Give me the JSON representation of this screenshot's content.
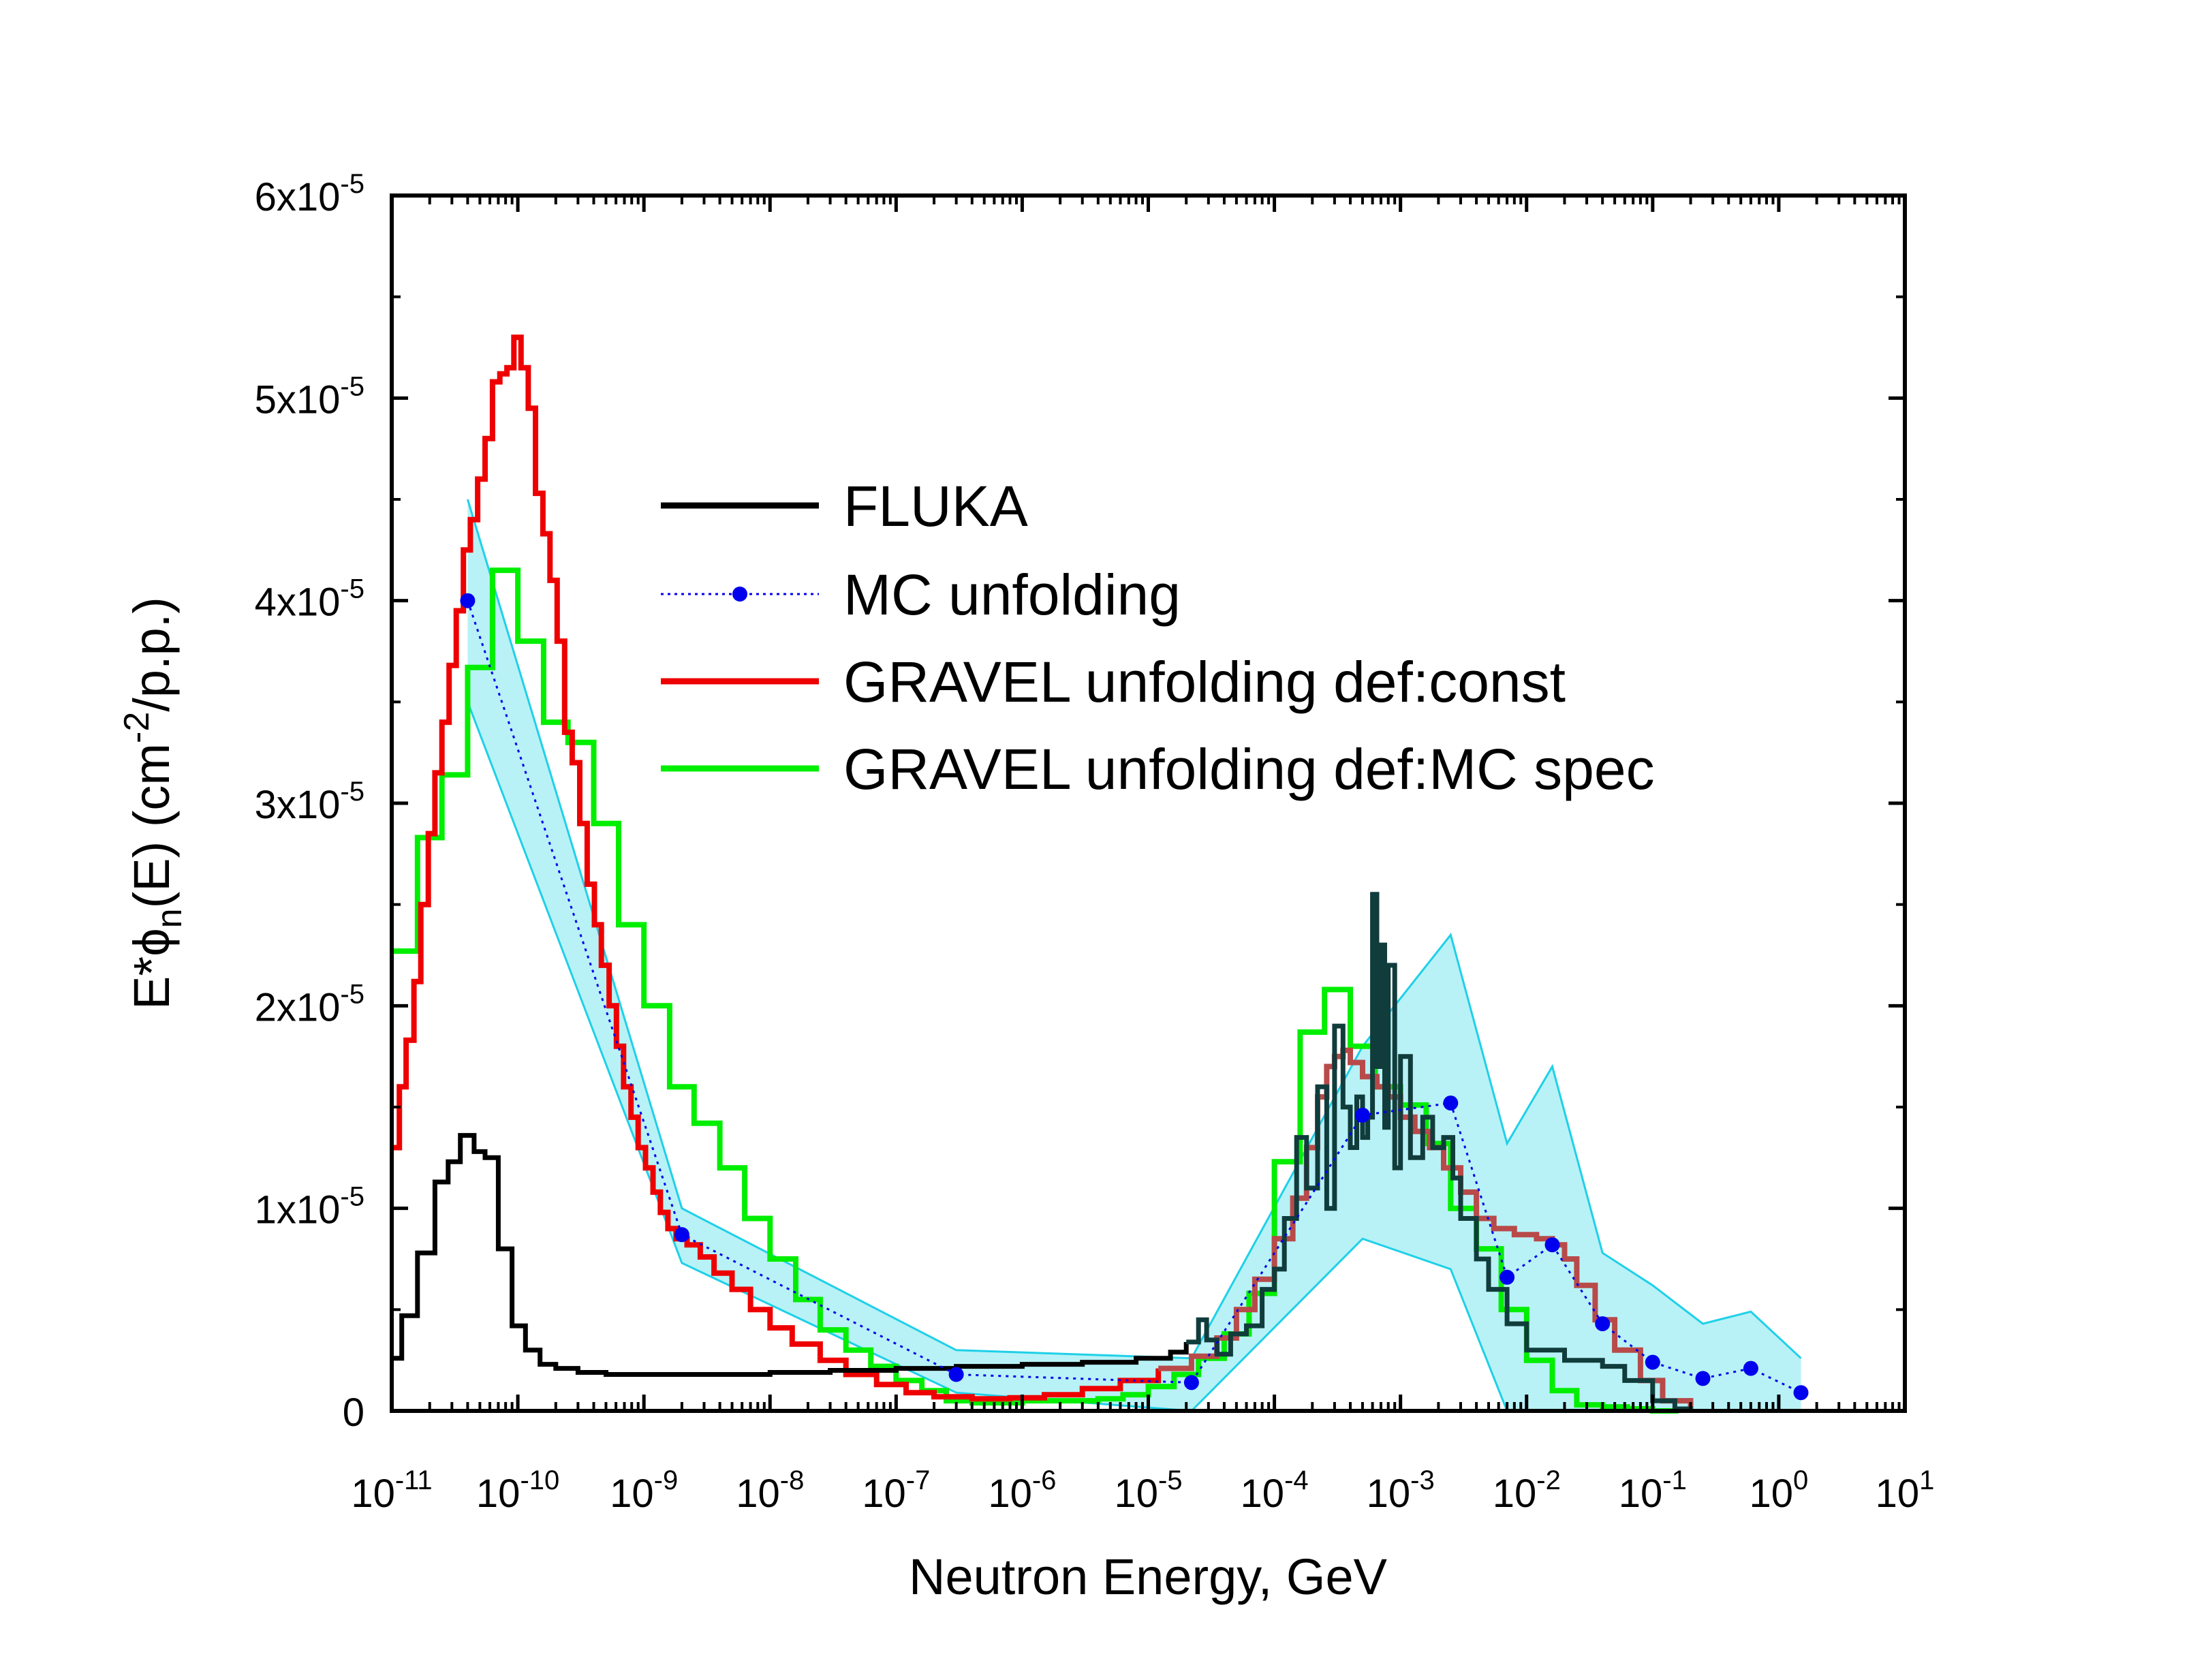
{
  "chart_data": {
    "type": "line",
    "xlabel": "Neutron Energy, GeV",
    "ylabel": "E*φn(E) (cm-2/p.p.)",
    "ylabel_parts": {
      "main": "E*",
      "phi": "ϕ",
      "sub": "n",
      "mid": "(E) (cm",
      "sup": "-2",
      "end": "/p.p.)"
    },
    "x_scale": "log",
    "xlim": [
      1e-11,
      10
    ],
    "ylim": [
      0,
      6e-05
    ],
    "x_ticks": [
      {
        "value": 1e-11,
        "base": "10",
        "exp": "-11"
      },
      {
        "value": 1e-10,
        "base": "10",
        "exp": "-10"
      },
      {
        "value": 1e-09,
        "base": "10",
        "exp": "-9"
      },
      {
        "value": 1e-08,
        "base": "10",
        "exp": "-8"
      },
      {
        "value": 1e-07,
        "base": "10",
        "exp": "-7"
      },
      {
        "value": 1e-06,
        "base": "10",
        "exp": "-6"
      },
      {
        "value": 1e-05,
        "base": "10",
        "exp": "-5"
      },
      {
        "value": 0.0001,
        "base": "10",
        "exp": "-4"
      },
      {
        "value": 0.001,
        "base": "10",
        "exp": "-3"
      },
      {
        "value": 0.01,
        "base": "10",
        "exp": "-2"
      },
      {
        "value": 0.1,
        "base": "10",
        "exp": "-1"
      },
      {
        "value": 1,
        "base": "10",
        "exp": "0"
      },
      {
        "value": 10,
        "base": "10",
        "exp": "1"
      }
    ],
    "y_ticks": [
      {
        "value": 0,
        "base": "0",
        "exp": ""
      },
      {
        "value": 1e-05,
        "base": "1x10",
        "exp": "-5"
      },
      {
        "value": 2e-05,
        "base": "2x10",
        "exp": "-5"
      },
      {
        "value": 3e-05,
        "base": "3x10",
        "exp": "-5"
      },
      {
        "value": 4e-05,
        "base": "4x10",
        "exp": "-5"
      },
      {
        "value": 5e-05,
        "base": "5x10",
        "exp": "-5"
      },
      {
        "value": 6e-05,
        "base": "6x10",
        "exp": "-5"
      }
    ],
    "legend_position": "upper-center",
    "colors": {
      "fluka": "#000000",
      "fluka_high": "#103c3c",
      "mc": "#0000ee",
      "band_fill": "#b8f2f6",
      "band_line": "#1fd0e8",
      "gravel_const": "#ee0000",
      "gravel_const_high": "#b84a4a",
      "gravel_mc": "#00ee00"
    },
    "series": [
      {
        "name": "FLUKA",
        "style": "step",
        "x": [
          1e-11,
          1.2e-11,
          1.6e-11,
          2.2e-11,
          2.8e-11,
          3.5e-11,
          4.5e-11,
          5.5e-11,
          7e-11,
          9e-11,
          1.15e-10,
          1.5e-10,
          2e-10,
          3e-10,
          5e-10,
          1e-09,
          3e-09,
          1e-08,
          3e-08,
          1e-07,
          3e-07,
          1e-06,
          3e-06,
          8e-06,
          1.5e-05,
          2e-05,
          2.5e-05,
          2.9e-05,
          3.5e-05,
          4.5e-05,
          6e-05,
          8e-05,
          0.0001,
          0.00012,
          0.00015,
          0.00018,
          0.00022,
          0.00026,
          0.0003,
          0.00035,
          0.0004,
          0.00045,
          0.0005,
          0.00055,
          0.0006,
          0.00065,
          0.0007,
          0.00075,
          0.0008,
          0.0009,
          0.001,
          0.0012,
          0.0015,
          0.0018,
          0.0022,
          0.0026,
          0.003,
          0.004,
          0.005,
          0.007,
          0.01,
          0.02,
          0.04,
          0.06,
          0.1,
          0.15,
          0.2
        ],
        "y": [
          2.6e-06,
          4.7e-06,
          7.8e-06,
          1.13e-05,
          1.23e-05,
          1.36e-05,
          1.28e-05,
          1.25e-05,
          8e-06,
          4.2e-06,
          3e-06,
          2.3e-06,
          2.1e-06,
          1.9e-06,
          1.8e-06,
          1.8e-06,
          1.8e-06,
          1.9e-06,
          2e-06,
          2.1e-06,
          2.2e-06,
          2.3e-06,
          2.4e-06,
          2.6e-06,
          2.9e-06,
          3.4e-06,
          4.5e-06,
          3.5e-06,
          2.8e-06,
          3.8e-06,
          4.2e-06,
          6e-06,
          7e-06,
          9.5e-06,
          1.35e-05,
          1.1e-05,
          1.6e-05,
          1e-05,
          1.9e-05,
          1.5e-05,
          1.3e-05,
          1.55e-05,
          1.35e-05,
          1.45e-05,
          2.55e-05,
          1.7e-05,
          2.3e-05,
          1.4e-05,
          2.2e-05,
          1.2e-05,
          1.75e-05,
          1.25e-05,
          1.45e-05,
          1.3e-05,
          1.35e-05,
          1.15e-05,
          9.5e-06,
          7.5e-06,
          6e-06,
          4.3e-06,
          3e-06,
          2.5e-06,
          2.2e-06,
          1.5e-06,
          5e-07,
          1e-07,
          0
        ]
      },
      {
        "name": "MC unfolding",
        "style": "dotted-markers",
        "x": [
          4e-11,
          2e-09,
          3e-07,
          2.2e-05,
          0.0005,
          0.0025,
          0.007,
          0.016,
          0.04,
          0.1,
          0.25,
          0.6,
          1.5
        ],
        "y": [
          4e-05,
          8.7e-06,
          1.8e-06,
          1.4e-06,
          1.46e-05,
          1.52e-05,
          6.6e-06,
          8.2e-06,
          4.3e-06,
          2.4e-06,
          1.6e-06,
          2.1e-06,
          9e-07
        ],
        "upper": [
          4.5e-05,
          1e-05,
          3e-06,
          2.6e-06,
          1.8e-05,
          2.35e-05,
          1.32e-05,
          1.7e-05,
          7.8e-06,
          6.2e-06,
          4.3e-06,
          4.9e-06,
          2.6e-06
        ],
        "lower": [
          3.5e-05,
          7.3e-06,
          9e-07,
          0,
          8.5e-06,
          7e-06,
          0,
          0,
          0,
          0,
          0,
          0,
          0
        ]
      },
      {
        "name": "GRAVEL unfolding def:const",
        "style": "step",
        "x": [
          1e-11,
          1.15e-11,
          1.3e-11,
          1.5e-11,
          1.7e-11,
          1.95e-11,
          2.2e-11,
          2.5e-11,
          2.85e-11,
          3.25e-11,
          3.7e-11,
          4.2e-11,
          4.8e-11,
          5.5e-11,
          6.3e-11,
          7.2e-11,
          8.2e-11,
          9.3e-11,
          1.06e-10,
          1.21e-10,
          1.38e-10,
          1.58e-10,
          1.8e-10,
          2.05e-10,
          2.35e-10,
          2.7e-10,
          3.1e-10,
          3.55e-10,
          4.05e-10,
          4.6e-10,
          5.3e-10,
          6.05e-10,
          6.9e-10,
          7.9e-10,
          9e-10,
          1.03e-09,
          1.18e-09,
          1.35e-09,
          1.55e-09,
          1.8e-09,
          2.2e-09,
          2.8e-09,
          3.6e-09,
          5e-09,
          7e-09,
          1e-08,
          1.5e-08,
          2.5e-08,
          4e-08,
          7e-08,
          1.2e-07,
          2e-07,
          4e-07,
          8e-07,
          1.5e-06,
          3e-06,
          6e-06,
          1.2e-05,
          2.2e-05,
          3.5e-05,
          5e-05,
          7e-05,
          0.0001,
          0.00014,
          0.00018,
          0.00022,
          0.00026,
          0.0003,
          0.00035,
          0.0004,
          0.0005,
          0.00065,
          0.0008,
          0.001,
          0.0013,
          0.0017,
          0.0022,
          0.003,
          0.004,
          0.0055,
          0.008,
          0.012,
          0.016,
          0.02,
          0.025,
          0.035,
          0.05,
          0.08,
          0.12,
          0.2
        ],
        "y": [
          1.3e-05,
          1.6e-05,
          1.83e-05,
          2.12e-05,
          2.5e-05,
          2.85e-05,
          3.15e-05,
          3.4e-05,
          3.68e-05,
          3.95e-05,
          4.25e-05,
          4.4e-05,
          4.6e-05,
          4.8e-05,
          5.08e-05,
          5.12e-05,
          5.15e-05,
          5.3e-05,
          5.15e-05,
          4.95e-05,
          4.53e-05,
          4.33e-05,
          4.1e-05,
          3.8e-05,
          3.35e-05,
          3.2e-05,
          2.9e-05,
          2.6e-05,
          2.4e-05,
          2.2e-05,
          2e-05,
          1.8e-05,
          1.6e-05,
          1.45e-05,
          1.3e-05,
          1.2e-05,
          1.08e-05,
          9.8e-06,
          9e-06,
          8.5e-06,
          8.2e-06,
          7.6e-06,
          6.8e-06,
          6e-06,
          5e-06,
          4.1e-06,
          3.3e-06,
          2.5e-06,
          1.8e-06,
          1.3e-06,
          9e-07,
          7e-07,
          6e-07,
          6.5e-07,
          8e-07,
          1.1e-06,
          1.5e-06,
          2.1e-06,
          2.7e-06,
          3.6e-06,
          5e-06,
          6.5e-06,
          8.5e-06,
          1.05e-05,
          1.3e-05,
          1.55e-05,
          1.7e-05,
          1.75e-05,
          1.78e-05,
          1.72e-05,
          1.65e-05,
          1.6e-05,
          1.55e-05,
          1.45e-05,
          1.38e-05,
          1.3e-05,
          1.2e-05,
          1.08e-05,
          9.5e-06,
          9e-06,
          8.7e-06,
          8.5e-06,
          8.2e-06,
          7.5e-06,
          6.2e-06,
          4.5e-06,
          3e-06,
          1.5e-06,
          5e-07,
          0
        ]
      },
      {
        "name": "GRAVEL unfolding def:MC spec",
        "style": "step",
        "x": [
          1e-11,
          1.6e-11,
          2.5e-11,
          4e-11,
          6.3e-11,
          1e-10,
          1.6e-10,
          2.5e-10,
          4e-10,
          6.3e-10,
          1e-09,
          1.6e-09,
          2.5e-09,
          4e-09,
          6.3e-09,
          1e-08,
          1.6e-08,
          2.5e-08,
          4e-08,
          6.3e-08,
          1e-07,
          1.6e-07,
          2.5e-07,
          4e-07,
          6.3e-07,
          1e-06,
          1.6e-06,
          2.5e-06,
          4e-06,
          6.3e-06,
          1e-05,
          1.6e-05,
          2.5e-05,
          4e-05,
          6.3e-05,
          0.0001,
          0.00016,
          0.00025,
          0.0004,
          0.00063,
          0.001,
          0.0016,
          0.0025,
          0.004,
          0.0063,
          0.01,
          0.016,
          0.025,
          0.04,
          0.063,
          0.1,
          0.16
        ],
        "y": [
          2.27e-05,
          2.83e-05,
          3.14e-05,
          3.67e-05,
          4.15e-05,
          3.8e-05,
          3.4e-05,
          3.3e-05,
          2.9e-05,
          2.4e-05,
          2e-05,
          1.6e-05,
          1.42e-05,
          1.2e-05,
          9.5e-06,
          7.5e-06,
          5.5e-06,
          4e-06,
          3e-06,
          2.2e-06,
          1.5e-06,
          1e-06,
          5e-07,
          4e-07,
          4e-07,
          5e-07,
          5e-07,
          5e-07,
          6e-07,
          8e-07,
          1.2e-06,
          1.8e-06,
          2.6e-06,
          3.8e-06,
          5.8e-06,
          1.23e-05,
          1.87e-05,
          2.08e-05,
          1.8e-05,
          1.6e-05,
          1.51e-05,
          1.32e-05,
          1e-05,
          8e-06,
          5e-06,
          2.5e-06,
          1e-06,
          3e-07,
          2e-07,
          1e-07,
          0,
          0
        ]
      }
    ]
  }
}
